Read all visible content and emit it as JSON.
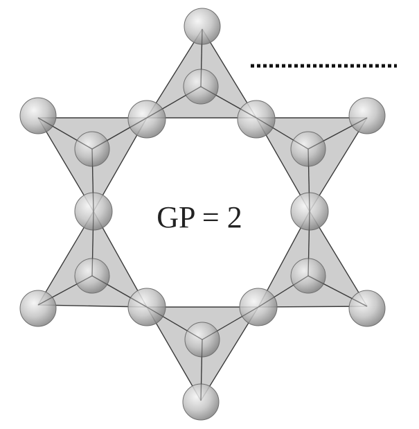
{
  "diagram": {
    "label": "GP = 2"
  },
  "colors": {
    "background": "#ffffff",
    "tetra_fill": "#bdbdbd",
    "tetra_stroke": "#3a3a3a",
    "atom_light": "#f2f2f2",
    "atom_dark": "#8a8a8a",
    "dotted_line": "#111111"
  }
}
